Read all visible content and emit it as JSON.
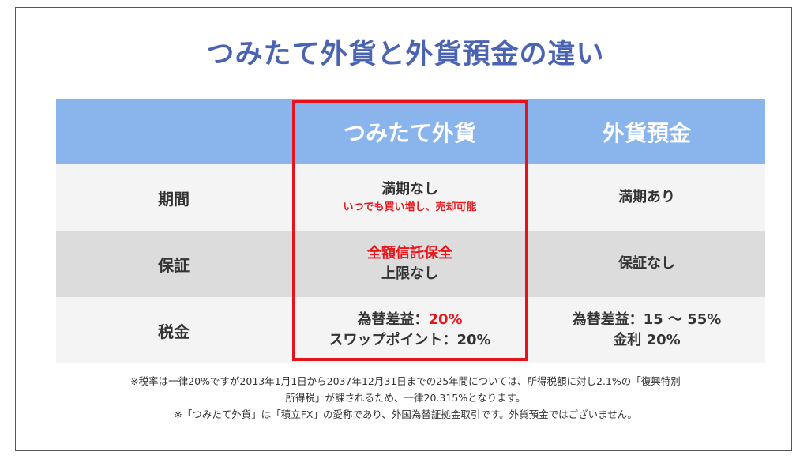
{
  "title": "つみたて外貨と外貨預金の違い",
  "table": {
    "header": {
      "col1": "つみたて外貨",
      "col2": "外貨預金"
    },
    "rows": [
      {
        "label": "期間",
        "col1_main": "満期なし",
        "col1_sub": "いつでも買い増し、売却可能",
        "col2": "満期あり"
      },
      {
        "label": "保証",
        "col1_highlight": "全額信託保全",
        "col1_main": "上限なし",
        "col2": "保証なし"
      },
      {
        "label": "税金",
        "col1_line1_prefix": "為替差益：",
        "col1_line1_value": "20%",
        "col1_line2": "スワップポイント：20%",
        "col2_line1": "為替差益：15 ～ 55%",
        "col2_line2": "金利 20%"
      }
    ]
  },
  "notes": {
    "line1": "※税率は一律20%ですが2013年1月1日から2037年12月31日までの25年間については、所得税額に対し2.1%の「復興特別",
    "line2": "所得税」が課されるため、一律20.315%となります。",
    "line3": "※「つみたて外貨」は「積立FX」の愛称であり、外国為替証拠金取引です。外貨預金ではございません。"
  },
  "colors": {
    "title": "#4a63b3",
    "header_bg": "#8ab4ec",
    "highlight_border": "#e4141c",
    "accent_red": "#e8151b"
  }
}
